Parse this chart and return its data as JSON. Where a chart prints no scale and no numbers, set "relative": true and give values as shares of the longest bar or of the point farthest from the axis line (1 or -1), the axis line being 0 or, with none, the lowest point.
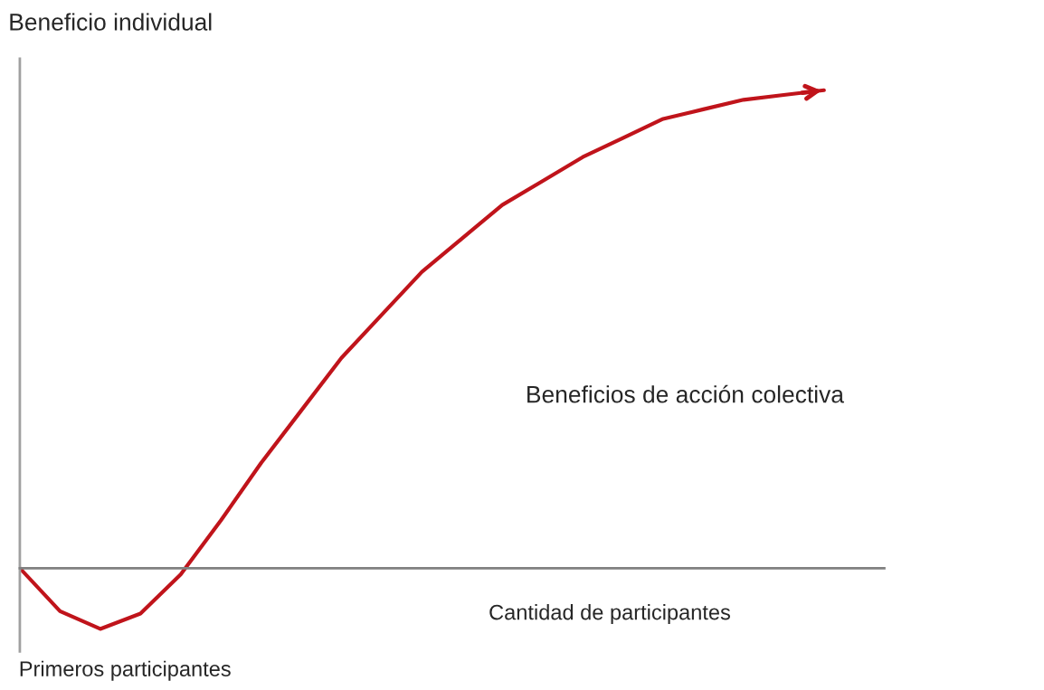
{
  "chart_data": {
    "type": "line",
    "relative": true,
    "ylabel": "Beneficio individual",
    "xlabel": "Cantidad de participantes",
    "categories": [
      null,
      null,
      null,
      null,
      null,
      null,
      null,
      null,
      null,
      null,
      null,
      null,
      null,
      null,
      null,
      null,
      null,
      null,
      null,
      null,
      null
    ],
    "series": [
      {
        "name": "Beneficios de acción colectiva",
        "color": "#c0141b",
        "values": [
          0,
          -0.09,
          -0.127,
          -0.095,
          -0.013,
          0.1,
          0.22,
          0.33,
          0.44,
          0.53,
          0.62,
          0.69,
          0.76,
          0.81,
          0.86,
          0.9,
          0.94,
          0.96,
          0.98,
          0.99,
          1.0
        ]
      }
    ],
    "annotations": [
      "Primeros participantes"
    ],
    "legend": false,
    "marker": "none",
    "line_style": "solid"
  }
}
